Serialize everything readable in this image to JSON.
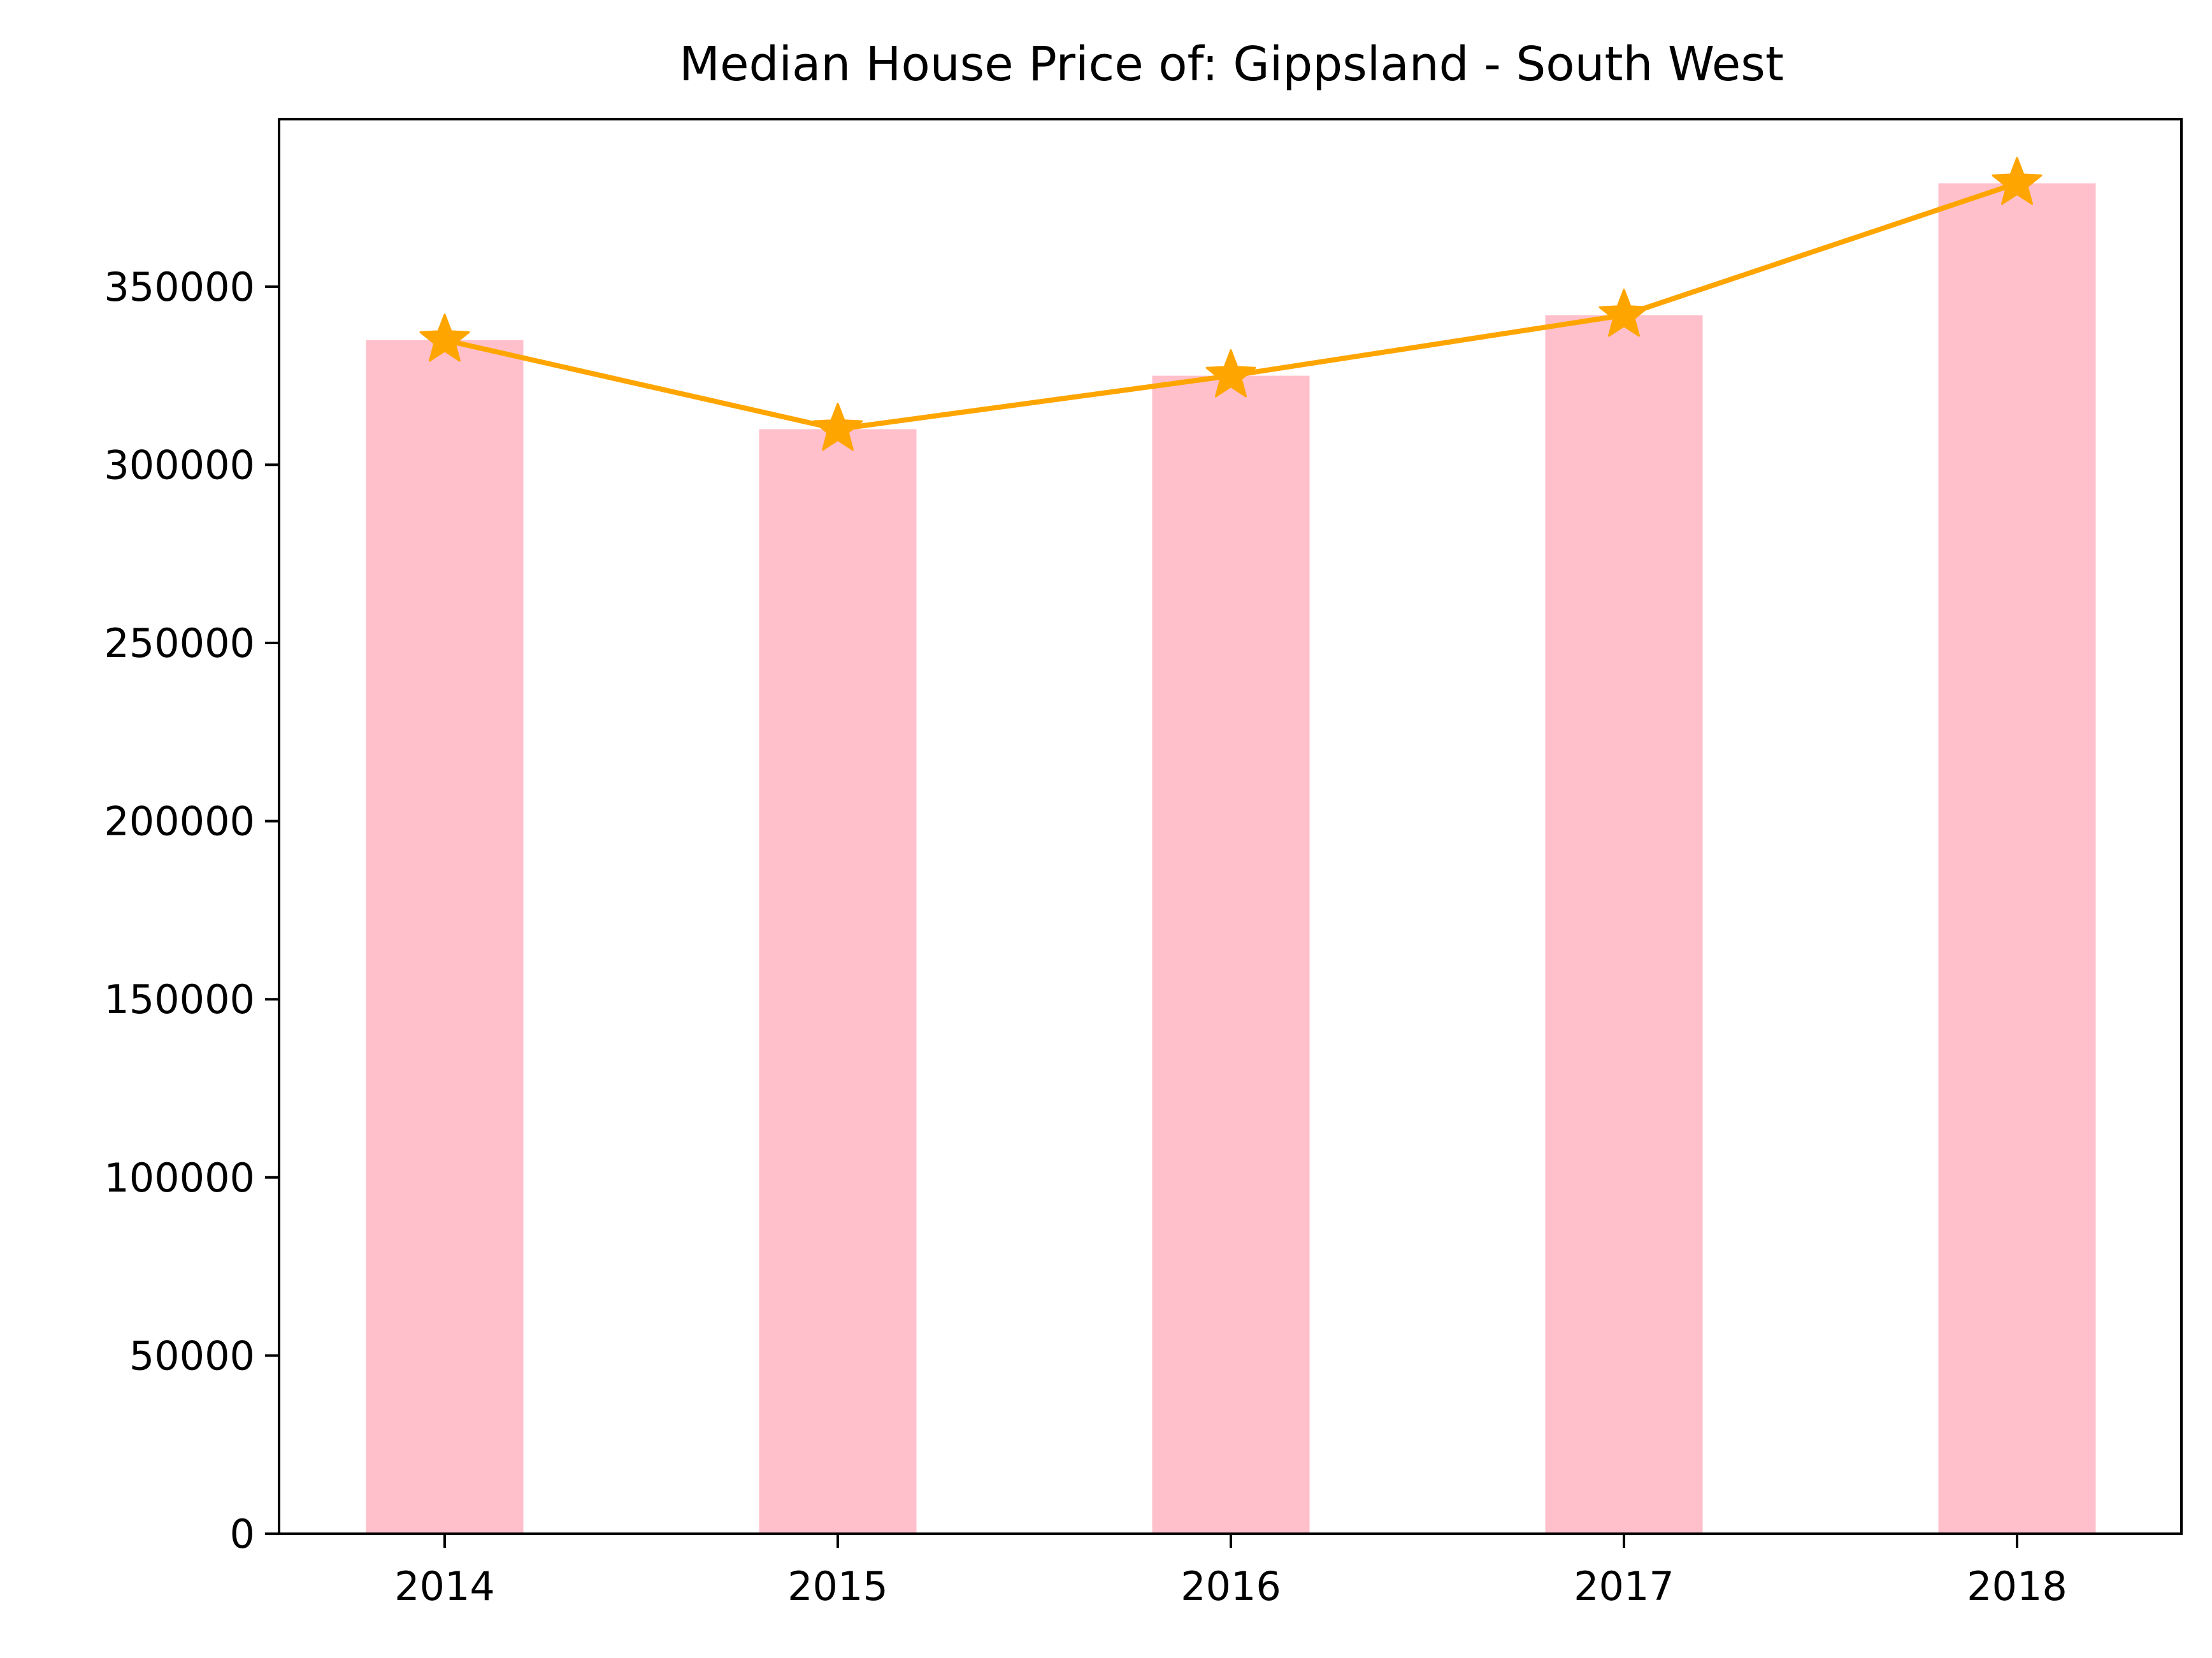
{
  "chart_data": {
    "type": "bar",
    "title": "Median House Price of: Gippsland - South West",
    "xlabel": "",
    "ylabel": "",
    "categories": [
      "2014",
      "2015",
      "2016",
      "2017",
      "2018"
    ],
    "series": [
      {
        "type": "bar",
        "values": [
          335000,
          310000,
          325000,
          342000,
          379000
        ],
        "color": "#ffc0cb"
      },
      {
        "type": "line",
        "marker": "star",
        "values": [
          335000,
          310000,
          325000,
          342000,
          379000
        ],
        "color": "#ffa500"
      }
    ],
    "ylim": [
      0,
      397000
    ],
    "yticks": [
      0,
      50000,
      100000,
      150000,
      200000,
      250000,
      300000,
      350000
    ],
    "grid": false
  }
}
